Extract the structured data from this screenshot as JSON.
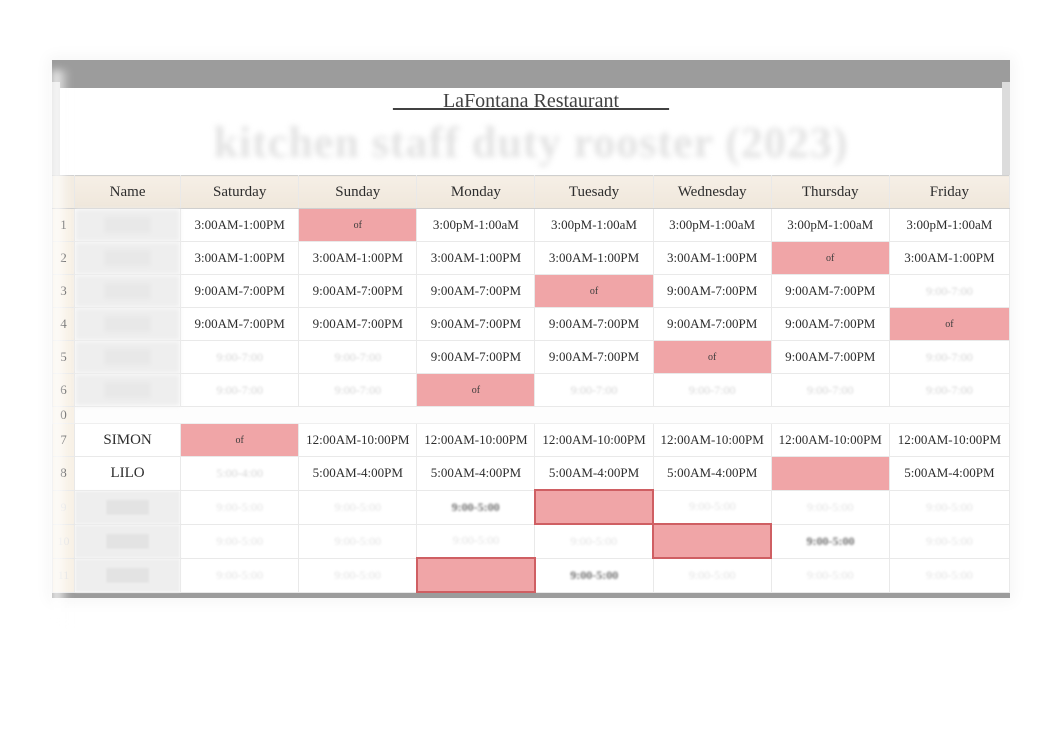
{
  "title_line": "_____LaFontana Restaurant_____",
  "subtitle": "kitchen staff duty rooster (2023)",
  "headers": {
    "name": "Name",
    "days": [
      "Saturday",
      "Sunday",
      "Monday",
      "Tuesady",
      "Wednesday",
      "Thursday",
      "Friday"
    ]
  },
  "rows": [
    {
      "idx": "1",
      "name": "—",
      "name_visible": false,
      "cells": [
        {
          "t": "3:00AM-1:00PM"
        },
        {
          "t": "of",
          "off": true
        },
        {
          "t": "3:00pM-1:00aM"
        },
        {
          "t": "3:00pM-1:00aM"
        },
        {
          "t": "3:00pM-1:00aM"
        },
        {
          "t": "3:00pM-1:00aM"
        },
        {
          "t": "3:00pM-1:00aM"
        }
      ]
    },
    {
      "idx": "2",
      "name": "—",
      "name_visible": false,
      "cells": [
        {
          "t": "3:00AM-1:00PM"
        },
        {
          "t": "3:00AM-1:00PM"
        },
        {
          "t": "3:00AM-1:00PM"
        },
        {
          "t": "3:00AM-1:00PM"
        },
        {
          "t": "3:00AM-1:00PM"
        },
        {
          "t": "of",
          "off": true
        },
        {
          "t": "3:00AM-1:00PM"
        }
      ]
    },
    {
      "idx": "3",
      "name": "—",
      "name_visible": false,
      "cells": [
        {
          "t": "9:00AM-7:00PM"
        },
        {
          "t": "9:00AM-7:00PM"
        },
        {
          "t": "9:00AM-7:00PM"
        },
        {
          "t": "of",
          "off": true
        },
        {
          "t": "9:00AM-7:00PM"
        },
        {
          "t": "9:00AM-7:00PM"
        },
        {
          "t": "9:00-7:00",
          "faded": true
        }
      ]
    },
    {
      "idx": "4",
      "name": "—",
      "name_visible": false,
      "cells": [
        {
          "t": "9:00AM-7:00PM"
        },
        {
          "t": "9:00AM-7:00PM"
        },
        {
          "t": "9:00AM-7:00PM"
        },
        {
          "t": "9:00AM-7:00PM"
        },
        {
          "t": "9:00AM-7:00PM"
        },
        {
          "t": "9:00AM-7:00PM"
        },
        {
          "t": "of",
          "off": true
        }
      ]
    },
    {
      "idx": "5",
      "name": "—",
      "name_visible": false,
      "cells": [
        {
          "t": "9:00-7:00",
          "faded": true
        },
        {
          "t": "9:00-7:00",
          "faded": true
        },
        {
          "t": "9:00AM-7:00PM"
        },
        {
          "t": "9:00AM-7:00PM"
        },
        {
          "t": "of",
          "off": true
        },
        {
          "t": "9:00AM-7:00PM"
        },
        {
          "t": "9:00-7:00",
          "faded": true
        }
      ]
    },
    {
      "idx": "6",
      "name": "—",
      "name_visible": false,
      "cells": [
        {
          "t": "9:00-7:00",
          "faded": true
        },
        {
          "t": "9:00-7:00",
          "faded": true
        },
        {
          "t": "of",
          "off": true
        },
        {
          "t": "9:00-7:00",
          "faded": true
        },
        {
          "t": "9:00-7:00",
          "faded": true
        },
        {
          "t": "9:00-7:00",
          "faded": true
        },
        {
          "t": "9:00-7:00",
          "faded": true
        }
      ]
    },
    {
      "idx": "0",
      "gap": true
    },
    {
      "idx": "7",
      "name": "SIMON",
      "name_visible": true,
      "cells": [
        {
          "t": "of",
          "off": true
        },
        {
          "t": "12:00AM-10:00PM"
        },
        {
          "t": "12:00AM-10:00PM"
        },
        {
          "t": "12:00AM-10:00PM"
        },
        {
          "t": "12:00AM-10:00PM"
        },
        {
          "t": "12:00AM-10:00PM"
        },
        {
          "t": "12:00AM-10:00PM"
        }
      ]
    },
    {
      "idx": "8",
      "name": "LILO",
      "name_visible": true,
      "cells": [
        {
          "t": "5:00-4:00",
          "faded": true
        },
        {
          "t": "5:00AM-4:00PM"
        },
        {
          "t": "5:00AM-4:00PM"
        },
        {
          "t": "5:00AM-4:00PM"
        },
        {
          "t": "5:00AM-4:00PM"
        },
        {
          "t": "",
          "off": true,
          "empty": true
        },
        {
          "t": "5:00AM-4:00PM"
        }
      ]
    },
    {
      "idx": "9",
      "low": true,
      "name": "—",
      "name_visible": false,
      "cells": [
        {
          "t": "9:00-5:00"
        },
        {
          "t": "9:00-5:00"
        },
        {
          "t": "9:00-5:00",
          "bold": true
        },
        {
          "t": "",
          "off": true,
          "empty": true
        },
        {
          "t": "9:00-5:00"
        },
        {
          "t": "9:00-5:00"
        },
        {
          "t": "9:00-5:00"
        }
      ]
    },
    {
      "idx": "10",
      "low": true,
      "name": "—",
      "name_visible": false,
      "cells": [
        {
          "t": "9:00-5:00"
        },
        {
          "t": "9:00-5:00"
        },
        {
          "t": "9:00-5:00"
        },
        {
          "t": "9:00-5:00"
        },
        {
          "t": "",
          "off": true,
          "empty": true
        },
        {
          "t": "9:00-5:00",
          "bold": true
        },
        {
          "t": "9:00-5:00"
        }
      ]
    },
    {
      "idx": "11",
      "low": true,
      "name": "—",
      "name_visible": false,
      "cells": [
        {
          "t": "9:00-5:00"
        },
        {
          "t": "9:00-5:00"
        },
        {
          "t": "",
          "off": true,
          "empty": true
        },
        {
          "t": "9:00-5:00",
          "bold": true
        },
        {
          "t": "9:00-5:00"
        },
        {
          "t": "9:00-5:00"
        },
        {
          "t": "9:00-5:00"
        }
      ]
    }
  ],
  "colors": {
    "off_bg": "#f0a5a7",
    "off_border": "#cf5f63",
    "row_idx_bg": "#f8f1e6",
    "header_bg_top": "#f6efe6",
    "header_bg_bottom": "#efe7db",
    "name_blur_bg": "#eeeeee",
    "faded_text": "#d6d6d6",
    "topbar": "#9c9c9c"
  }
}
